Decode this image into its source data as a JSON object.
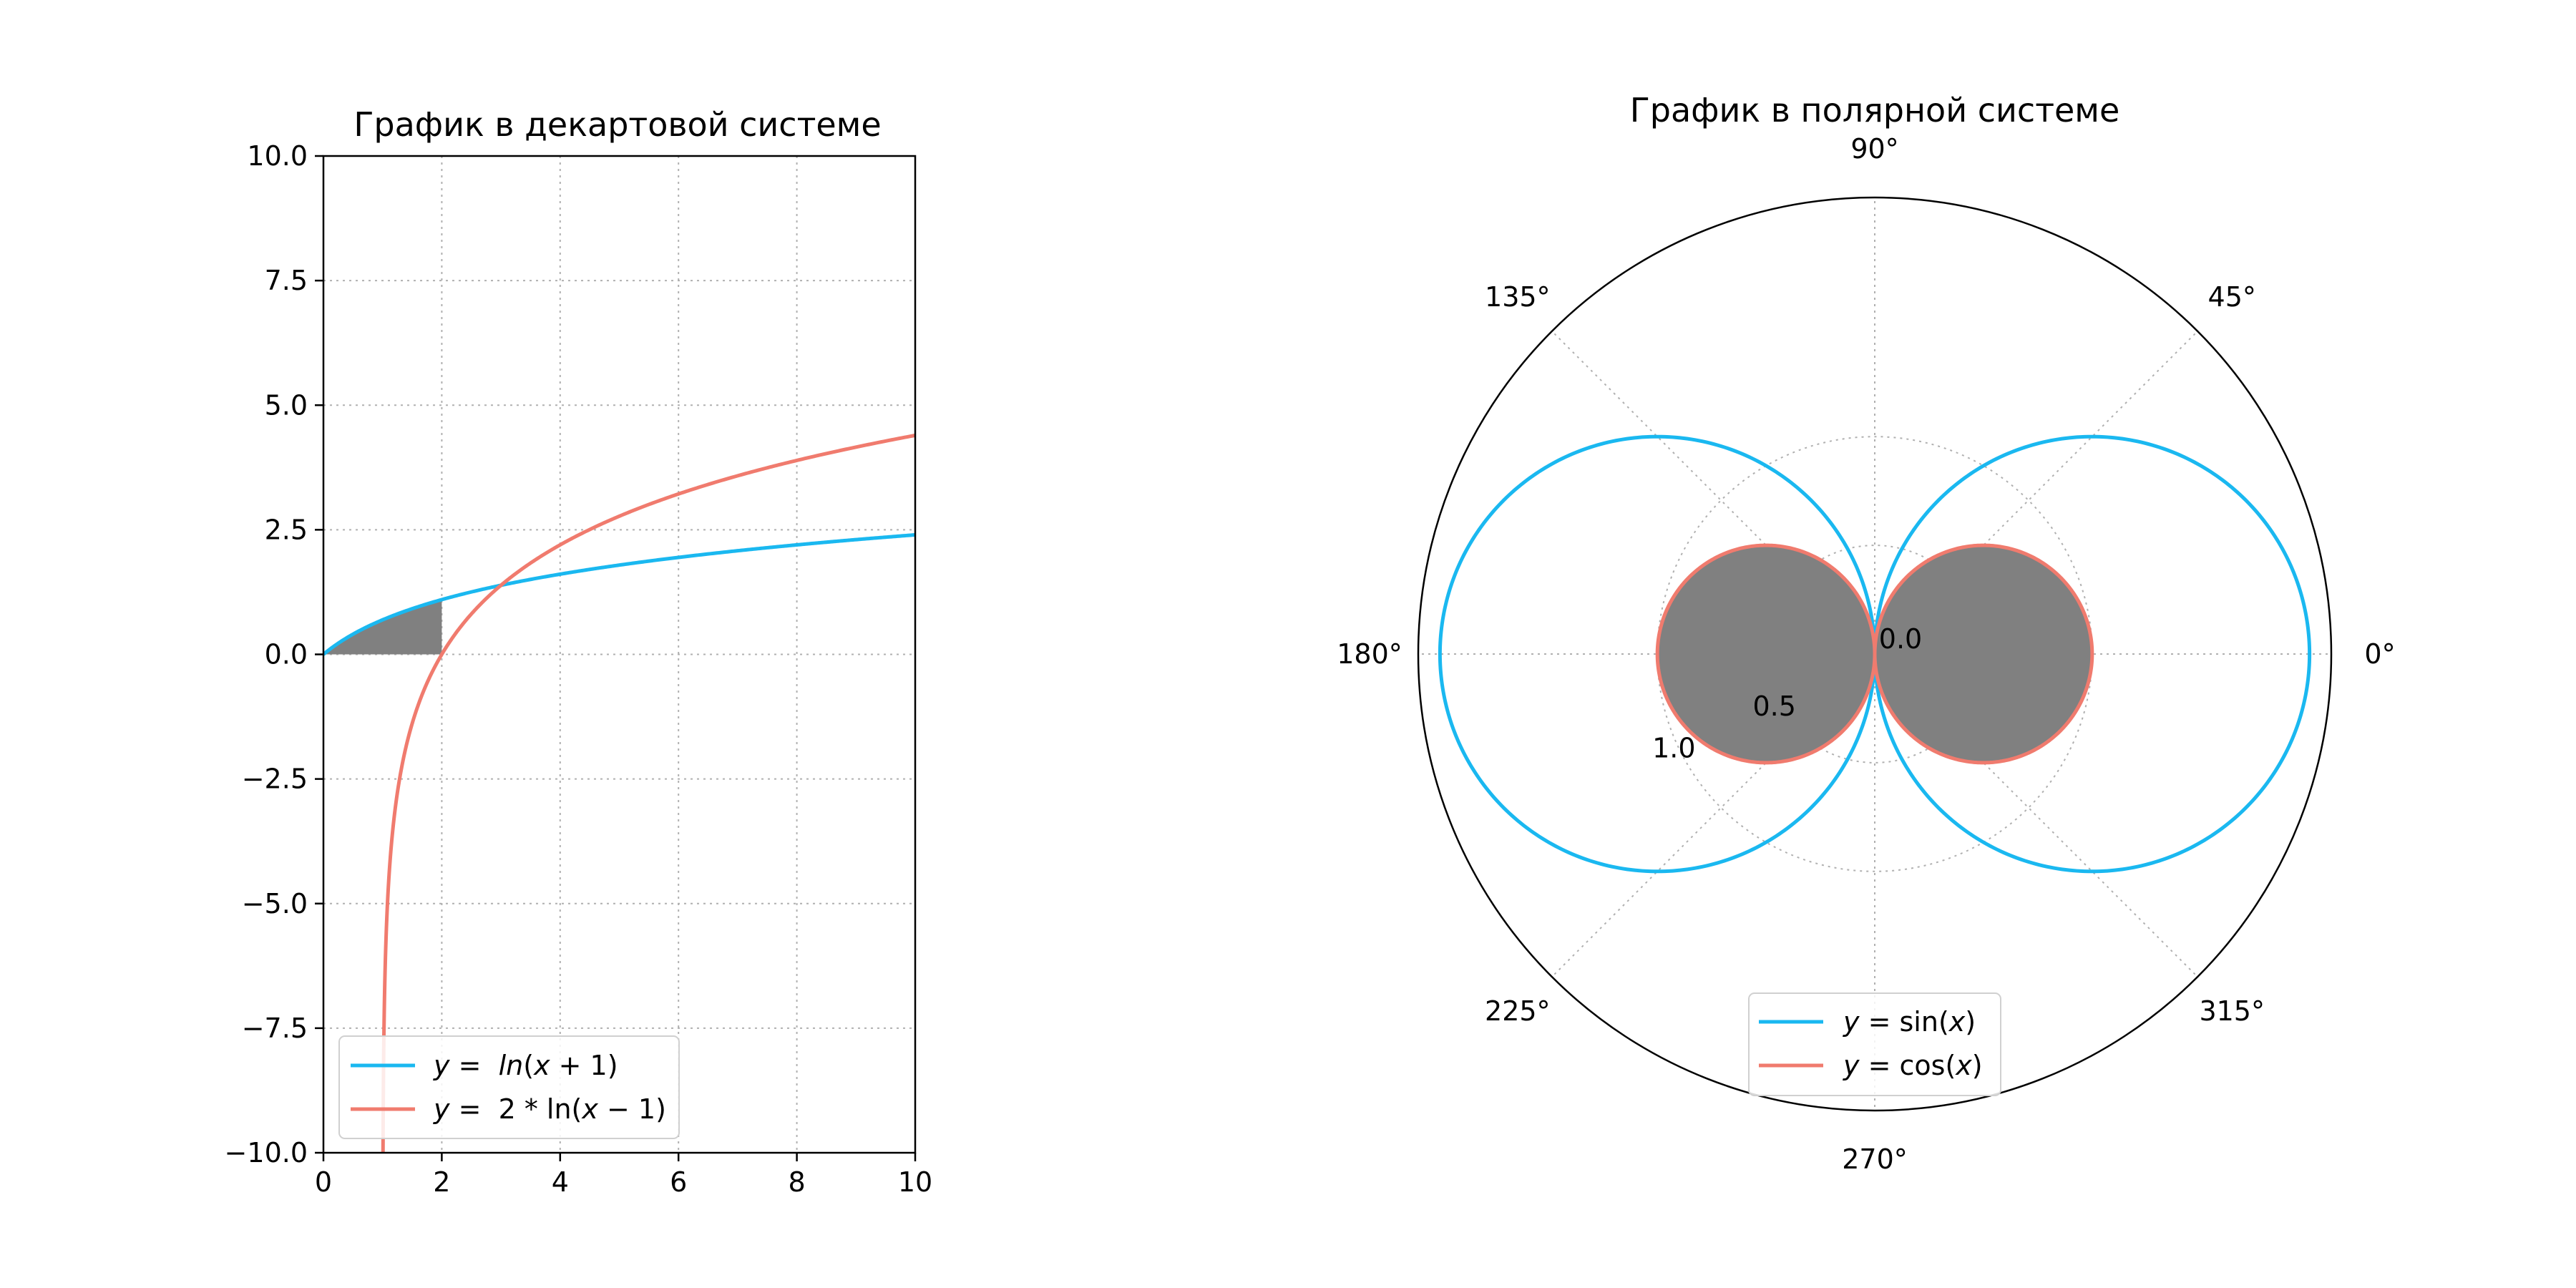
{
  "chart_data": [
    {
      "type": "line",
      "title": "График в декартовой системе",
      "xlabel": "",
      "ylabel": "",
      "xlim": [
        0,
        10
      ],
      "ylim": [
        -10,
        10
      ],
      "xticks": [
        0,
        2,
        4,
        6,
        8,
        10
      ],
      "xtick_labels": [
        "0",
        "2",
        "4",
        "6",
        "8",
        "10"
      ],
      "yticks": [
        -10,
        -7.5,
        -5,
        -2.5,
        0,
        2.5,
        5,
        7.5,
        10
      ],
      "ytick_labels": [
        "−10.0",
        "−7.5",
        "−5.0",
        "−2.5",
        "0.0",
        "2.5",
        "5.0",
        "7.5",
        "10.0"
      ],
      "grid": true,
      "legend_position": "bottom-left",
      "series": [
        {
          "name": "y = ln(x+1)",
          "legend_parts": [
            "y",
            " =  ",
            "ln",
            "(",
            "x",
            " + 1)"
          ],
          "color": "#1ab8f0",
          "x": [
            0,
            0.5,
            1,
            1.5,
            2,
            3,
            4,
            5,
            6,
            7,
            8,
            9,
            10
          ],
          "y": [
            0,
            0.405,
            0.693,
            0.916,
            1.099,
            1.386,
            1.609,
            1.792,
            1.946,
            2.079,
            2.197,
            2.303,
            2.398
          ]
        },
        {
          "name": "y = 2*ln(x-1)",
          "legend_parts": [
            "y",
            " =  2 * ln(",
            "x",
            " − 1)"
          ],
          "color": "#f07b6e",
          "x": [
            1.0067,
            1.01,
            1.05,
            1.2,
            1.5,
            2,
            3,
            4,
            5,
            6,
            7,
            8,
            9,
            10
          ],
          "y": [
            -10,
            -9.21,
            -5.99,
            -3.22,
            -1.386,
            0,
            1.386,
            2.197,
            2.773,
            3.219,
            3.584,
            3.892,
            4.159,
            4.394
          ]
        }
      ],
      "fill": {
        "between": "y = ln(x+1) and y = 0",
        "x_range": [
          0,
          2
        ],
        "color": "#808080"
      }
    },
    {
      "type": "polar",
      "title": "График в полярной системе",
      "theta_ticks": [
        0,
        45,
        90,
        135,
        180,
        225,
        270,
        315
      ],
      "theta_tick_labels": [
        "0°",
        "45°",
        "90°",
        "135°",
        "180°",
        "225°",
        "270°",
        "315°"
      ],
      "r_ticks": [
        0,
        0.5,
        1
      ],
      "r_tick_labels": [
        "0.0",
        "0.5",
        "1.0"
      ],
      "r_range": [
        0,
        2.1
      ],
      "grid": true,
      "legend_position": "bottom-center",
      "series": [
        {
          "name": "y = sin(x)",
          "legend_parts": [
            "y",
            " = sin(",
            "x",
            ")"
          ],
          "color": "#1ab8f0",
          "theta_degrees": [
            0,
            15,
            30,
            45,
            60,
            75,
            90,
            105,
            120,
            135,
            150,
            165,
            180,
            195,
            210,
            225,
            240,
            255,
            270,
            285,
            300,
            315,
            330,
            345,
            360
          ],
          "r": [
            2,
            1.932,
            1.732,
            1.414,
            1,
            0.518,
            0,
            0.518,
            1,
            1.414,
            1.732,
            1.932,
            2,
            1.932,
            1.732,
            1.414,
            1,
            0.518,
            0,
            0.518,
            1,
            1.414,
            1.732,
            1.932,
            2
          ]
        },
        {
          "name": "y = cos(x)",
          "legend_parts": [
            "y",
            " = cos(",
            "x",
            ")"
          ],
          "color": "#f07b6e",
          "theta_degrees": [
            0,
            15,
            30,
            45,
            60,
            75,
            90,
            105,
            120,
            135,
            150,
            165,
            180,
            195,
            210,
            225,
            240,
            255,
            270,
            285,
            300,
            315,
            330,
            345,
            360
          ],
          "r": [
            1,
            0.966,
            0.866,
            0.707,
            0.5,
            0.259,
            0,
            0.259,
            0.5,
            0.707,
            0.866,
            0.966,
            1,
            0.966,
            0.866,
            0.707,
            0.5,
            0.259,
            0,
            0.259,
            0.5,
            0.707,
            0.866,
            0.966,
            1
          ]
        }
      ],
      "fill": {
        "region": "inside y = cos(x)",
        "color": "#808080"
      }
    }
  ]
}
